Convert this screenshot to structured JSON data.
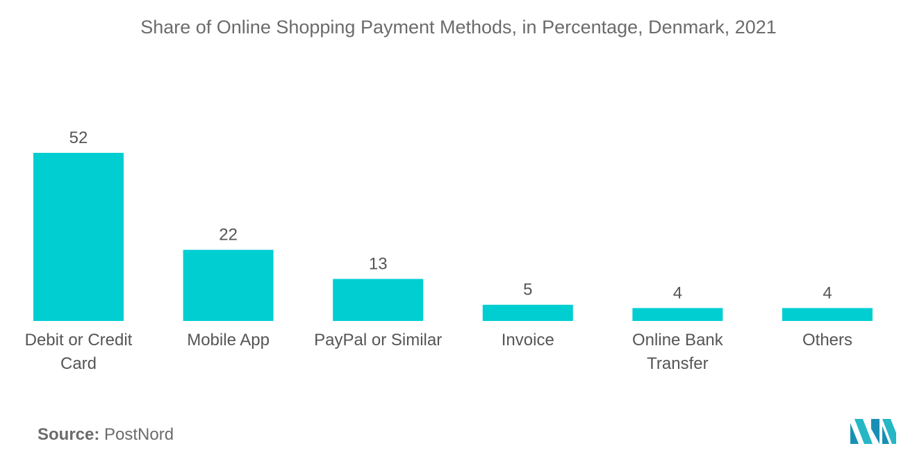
{
  "chart_data": {
    "type": "bar",
    "title": "Share of Online Shopping Payment Methods, in Percentage, Denmark, 2021",
    "categories": [
      [
        "Debit or Credit",
        "Card"
      ],
      [
        "Mobile App"
      ],
      [
        "PayPal or Similar"
      ],
      [
        "Invoice"
      ],
      [
        "Online Bank",
        "Transfer"
      ],
      [
        "Others"
      ]
    ],
    "values": [
      52,
      22,
      13,
      5,
      4,
      4
    ],
    "xlabel": "",
    "ylabel": "",
    "ylim": [
      0,
      52
    ],
    "grid": false,
    "bar_color": "#00ced1",
    "label_color": "#555555"
  },
  "source": {
    "label": "Source:",
    "value": "PostNord"
  },
  "logo": {
    "icon": "mordor-intelligence-logo",
    "colors": [
      "#1a8fb5",
      "#27b7c4"
    ]
  }
}
